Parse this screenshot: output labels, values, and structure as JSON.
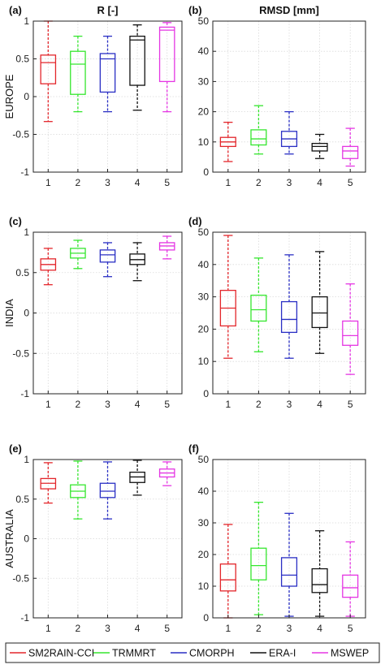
{
  "legend": {
    "items": [
      {
        "name": "SM2RAIN-CCI",
        "color": "#e3262b"
      },
      {
        "name": "TRMMRT",
        "color": "#35e62e"
      },
      {
        "name": "CMORPH",
        "color": "#2a2fc4"
      },
      {
        "name": "ERA-I",
        "color": "#111111"
      },
      {
        "name": "MSWEP",
        "color": "#e536e3"
      }
    ]
  },
  "chart_data": [
    {
      "type": "box",
      "id": "a",
      "row": "EUROPE",
      "letter": "(a)",
      "title": "R [-]",
      "categories": [
        "1",
        "2",
        "3",
        "4",
        "5"
      ],
      "ylim": [
        -1,
        1
      ],
      "yticks": [
        "-1",
        "-0.5",
        "0",
        "0.5",
        "1"
      ],
      "grid": true,
      "boxes": [
        {
          "min": -0.33,
          "q1": 0.17,
          "median": 0.45,
          "q3": 0.55,
          "max": 1.0
        },
        {
          "min": -0.2,
          "q1": 0.03,
          "median": 0.43,
          "q3": 0.6,
          "max": 0.8
        },
        {
          "min": -0.2,
          "q1": 0.06,
          "median": 0.5,
          "q3": 0.57,
          "max": 0.8
        },
        {
          "min": -0.18,
          "q1": 0.15,
          "median": 0.75,
          "q3": 0.8,
          "max": 0.95
        },
        {
          "min": -0.2,
          "q1": 0.2,
          "median": 0.88,
          "q3": 0.92,
          "max": 0.98
        }
      ]
    },
    {
      "type": "box",
      "id": "b",
      "row": "EUROPE",
      "letter": "(b)",
      "title": "RMSD [mm]",
      "categories": [
        "1",
        "2",
        "3",
        "4",
        "5"
      ],
      "ylim": [
        0,
        50
      ],
      "yticks": [
        "0",
        "10",
        "20",
        "30",
        "40",
        "50"
      ],
      "grid": true,
      "boxes": [
        {
          "min": 3.5,
          "q1": 8.5,
          "median": 10,
          "q3": 11.5,
          "max": 16.5
        },
        {
          "min": 6,
          "q1": 9,
          "median": 11,
          "q3": 14,
          "max": 22
        },
        {
          "min": 6,
          "q1": 8.5,
          "median": 11,
          "q3": 13.5,
          "max": 20
        },
        {
          "min": 4.5,
          "q1": 7,
          "median": 8.5,
          "q3": 9.5,
          "max": 12.5
        },
        {
          "min": 2,
          "q1": 4.5,
          "median": 7,
          "q3": 8.5,
          "max": 14.5
        }
      ]
    },
    {
      "type": "box",
      "id": "c",
      "row": "INDIA",
      "letter": "(c)",
      "title": "",
      "categories": [
        "1",
        "2",
        "3",
        "4",
        "5"
      ],
      "ylim": [
        -1,
        1
      ],
      "yticks": [
        "-1",
        "-0.5",
        "0",
        "0.5",
        "1"
      ],
      "grid": true,
      "boxes": [
        {
          "min": 0.35,
          "q1": 0.53,
          "median": 0.6,
          "q3": 0.67,
          "max": 0.8
        },
        {
          "min": 0.55,
          "q1": 0.68,
          "median": 0.74,
          "q3": 0.8,
          "max": 0.9
        },
        {
          "min": 0.45,
          "q1": 0.63,
          "median": 0.72,
          "q3": 0.78,
          "max": 0.87
        },
        {
          "min": 0.4,
          "q1": 0.6,
          "median": 0.66,
          "q3": 0.73,
          "max": 0.87
        },
        {
          "min": 0.67,
          "q1": 0.78,
          "median": 0.83,
          "q3": 0.87,
          "max": 0.95
        }
      ]
    },
    {
      "type": "box",
      "id": "d",
      "row": "INDIA",
      "letter": "(d)",
      "title": "",
      "categories": [
        "1",
        "2",
        "3",
        "4",
        "5"
      ],
      "ylim": [
        0,
        50
      ],
      "yticks": [
        "0",
        "10",
        "20",
        "30",
        "40",
        "50"
      ],
      "grid": true,
      "boxes": [
        {
          "min": 11,
          "q1": 21,
          "median": 26.5,
          "q3": 32,
          "max": 49
        },
        {
          "min": 13,
          "q1": 22.5,
          "median": 26,
          "q3": 30.5,
          "max": 42
        },
        {
          "min": 11,
          "q1": 19,
          "median": 23,
          "q3": 28.5,
          "max": 43
        },
        {
          "min": 12.5,
          "q1": 20.5,
          "median": 25,
          "q3": 30,
          "max": 44
        },
        {
          "min": 6,
          "q1": 15,
          "median": 18,
          "q3": 22.5,
          "max": 34
        }
      ]
    },
    {
      "type": "box",
      "id": "e",
      "row": "AUSTRALIA",
      "letter": "(e)",
      "title": "",
      "categories": [
        "1",
        "2",
        "3",
        "4",
        "5"
      ],
      "ylim": [
        -1,
        1
      ],
      "yticks": [
        "-1",
        "-0.5",
        "0",
        "0.5",
        "1"
      ],
      "grid": true,
      "boxes": [
        {
          "min": 0.45,
          "q1": 0.63,
          "median": 0.7,
          "q3": 0.76,
          "max": 0.96
        },
        {
          "min": 0.25,
          "q1": 0.52,
          "median": 0.6,
          "q3": 0.68,
          "max": 0.98
        },
        {
          "min": 0.25,
          "q1": 0.52,
          "median": 0.6,
          "q3": 0.7,
          "max": 0.97
        },
        {
          "min": 0.55,
          "q1": 0.71,
          "median": 0.78,
          "q3": 0.84,
          "max": 0.99
        },
        {
          "min": 0.67,
          "q1": 0.78,
          "median": 0.83,
          "q3": 0.88,
          "max": 0.97
        }
      ]
    },
    {
      "type": "box",
      "id": "f",
      "row": "AUSTRALIA",
      "letter": "(f)",
      "title": "",
      "categories": [
        "1",
        "2",
        "3",
        "4",
        "5"
      ],
      "ylim": [
        0,
        50
      ],
      "yticks": [
        "0",
        "10",
        "20",
        "30",
        "40",
        "50"
      ],
      "grid": true,
      "boxes": [
        {
          "min": 0,
          "q1": 8.5,
          "median": 12,
          "q3": 17,
          "max": 29.5
        },
        {
          "min": 1,
          "q1": 12,
          "median": 16.5,
          "q3": 22,
          "max": 36.5
        },
        {
          "min": 0.5,
          "q1": 10,
          "median": 13.5,
          "q3": 19,
          "max": 33
        },
        {
          "min": 0.5,
          "q1": 8,
          "median": 10.5,
          "q3": 15.5,
          "max": 27.5
        },
        {
          "min": 0.5,
          "q1": 6.5,
          "median": 9.5,
          "q3": 13.5,
          "max": 24
        }
      ]
    }
  ]
}
